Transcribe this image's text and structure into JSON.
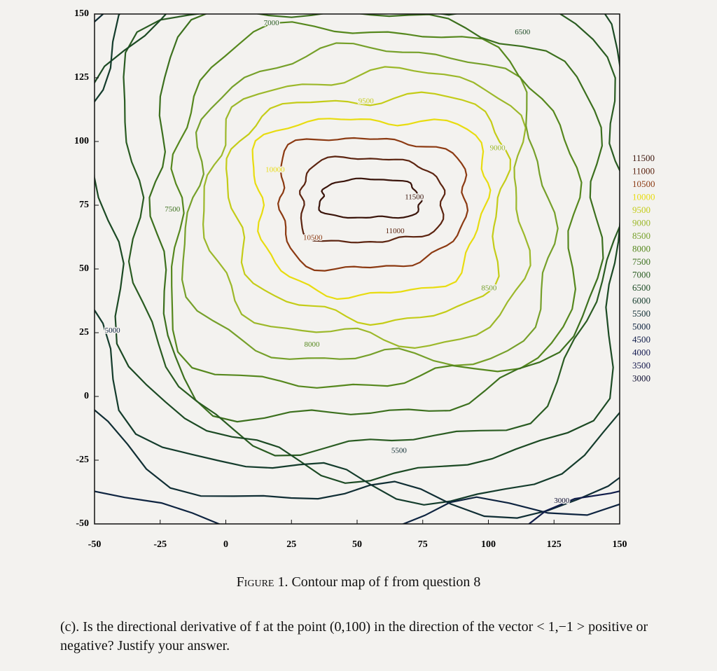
{
  "chart_data": {
    "type": "contour",
    "xlim": [
      -50,
      150
    ],
    "ylim": [
      -50,
      150
    ],
    "xticks": [
      -50,
      -25,
      0,
      25,
      50,
      75,
      100,
      125,
      150
    ],
    "yticks": [
      -50,
      -25,
      0,
      25,
      50,
      75,
      100,
      125,
      150
    ],
    "levels": [
      11500,
      11000,
      10500,
      10000,
      9500,
      9000,
      8500,
      8000,
      7500,
      7000,
      6500,
      6000,
      5500,
      5000,
      4500,
      4000,
      3500,
      3000
    ],
    "colors": [
      "#3a140a",
      "#5c2410",
      "#8c3a12",
      "#e8dc10",
      "#c4cc18",
      "#9cb82a",
      "#76a02a",
      "#56881e",
      "#3c701e",
      "#2a5c22",
      "#1c4a24",
      "#143c2c",
      "#102e34",
      "#0e2440",
      "#101c4a",
      "#121850",
      "#10144a",
      "#0c0c30"
    ]
  },
  "caption": {
    "label": "Figure 1.",
    "text": "Contour map of f from question 8"
  },
  "question": "(c). Is the directional derivative of f at the point (0,100) in the direction of the vector < 1,−1 > positive or negative? Justify your answer."
}
